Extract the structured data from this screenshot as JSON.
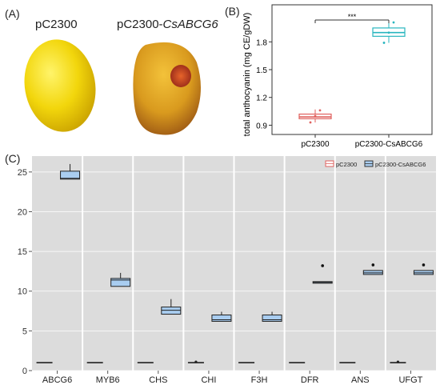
{
  "panels": {
    "a_label": "(A)",
    "b_label": "(B)",
    "c_label": "(C)"
  },
  "photo": {
    "left_caption": "pC2300",
    "right_caption_prefix": "pC2300-",
    "right_caption_gene": "CsABCG6"
  },
  "colors": {
    "pc2300": "#e0625f",
    "csabcg6": "#29b6bf",
    "box_fill_c": "#a9cdf0",
    "box_edge_c": "#222222",
    "panel_bg": "#dcdcdc"
  },
  "chart_data": [
    {
      "type": "box",
      "panel": "B",
      "ylabel": "total anthocyanin  (mg CE/gDW)",
      "categories": [
        "pC2300",
        "pC2300-CsABCG6"
      ],
      "ylim": [
        0.8,
        2.2
      ],
      "yticks": [
        0.9,
        1.2,
        1.5,
        1.8
      ],
      "boxes": [
        {
          "name": "pC2300",
          "q1": 0.97,
          "median": 0.99,
          "q3": 1.02,
          "whisker_low": 0.93,
          "whisker_high": 1.07,
          "points": [
            0.93,
            1.0,
            1.06
          ]
        },
        {
          "name": "pC2300-CsABCG6",
          "q1": 1.86,
          "median": 1.9,
          "q3": 1.95,
          "whisker_low": 1.79,
          "whisker_high": 2.01,
          "points": [
            1.79,
            1.9,
            2.01
          ]
        }
      ],
      "significance": "***"
    },
    {
      "type": "box",
      "panel": "C",
      "legend": [
        "pC2300",
        "pC2300-CsABCG6"
      ],
      "legend_position": "top-right",
      "categories": [
        "ABCG6",
        "MYB6",
        "CHS",
        "CHI",
        "F3H",
        "DFR",
        "ANS",
        "UFGT"
      ],
      "ylim": [
        0,
        27
      ],
      "yticks": [
        0,
        5,
        10,
        15,
        20,
        25
      ],
      "series": [
        {
          "name": "pC2300",
          "values": [
            1.0,
            1.0,
            1.0,
            1.0,
            1.0,
            1.0,
            1.0,
            1.0
          ],
          "outlier": [
            null,
            null,
            null,
            1.1,
            null,
            null,
            null,
            1.1
          ]
        },
        {
          "name": "pC2300-CsABCG6",
          "q1": [
            24.1,
            10.6,
            7.1,
            6.2,
            6.2,
            11.0,
            12.1,
            12.1
          ],
          "median": [
            24.2,
            11.4,
            7.6,
            6.4,
            6.4,
            11.1,
            12.3,
            12.3
          ],
          "q3": [
            25.1,
            11.6,
            8.0,
            7.0,
            7.0,
            11.2,
            12.6,
            12.6
          ],
          "whisker_high": [
            26.0,
            12.3,
            9.0,
            7.4,
            7.4,
            null,
            null,
            null
          ],
          "outlier": [
            null,
            null,
            null,
            null,
            null,
            13.2,
            13.3,
            13.3
          ]
        }
      ]
    }
  ]
}
